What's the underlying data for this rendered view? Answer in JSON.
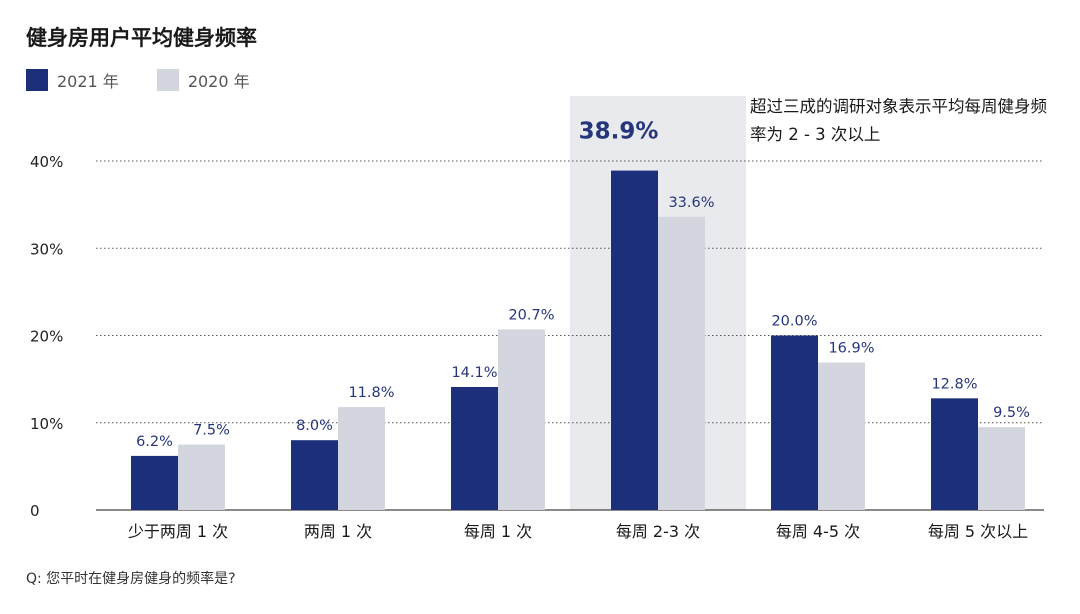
{
  "chart_data": {
    "type": "bar",
    "title": "健身房用户平均健身频率",
    "categories": [
      "少于两周 1 次",
      "两周 1 次",
      "每周 1 次",
      "每周 2-3 次",
      "每周 4-5 次",
      "每周 5 次以上"
    ],
    "series": [
      {
        "name": "2021 年",
        "color": "#1b2f7a",
        "values": [
          6.2,
          8.0,
          14.1,
          38.9,
          20.0,
          12.8
        ],
        "labels": [
          "6.2%",
          "8.0%",
          "14.1%",
          "38.9%",
          "20.0%",
          "12.8%"
        ]
      },
      {
        "name": "2020 年",
        "color": "#d3d6df",
        "values": [
          7.5,
          11.8,
          20.7,
          33.6,
          16.9,
          9.5
        ],
        "labels": [
          "7.5%",
          "11.8%",
          "20.7%",
          "33.6%",
          "16.9%",
          "9.5%"
        ]
      }
    ],
    "yticks": [
      0,
      10,
      20,
      30,
      40
    ],
    "ytick_labels": [
      "0",
      "10%",
      "20%",
      "30%",
      "40%"
    ],
    "ylim": [
      0,
      40
    ],
    "grid": "dotted horizontal",
    "legend_position": "top-left",
    "highlight_category": "每周 2-3 次",
    "highlight_color": "#e9eaee",
    "annotation": "超过三成的调研对象表示平均每周健身频率为 2 - 3 次以上",
    "footnote": "Q: 您平时在健身房健身的频率是?"
  }
}
